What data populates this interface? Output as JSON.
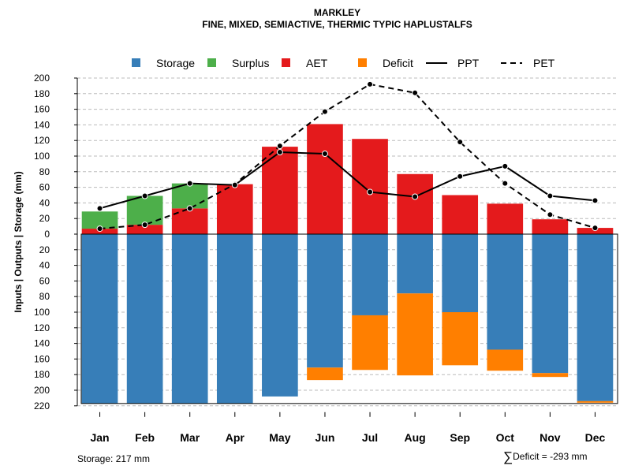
{
  "chart_data": {
    "type": "bar",
    "title": "MARKLEY",
    "subtitle": "FINE, MIXED, SEMIACTIVE, THERMIC TYPIC HAPLUSTALFS",
    "ylabel": "Inputs | Outputs | Storage    (mm)",
    "xlabel": "",
    "ylim": [
      -220,
      200
    ],
    "grid": true,
    "y_ticks": [
      200,
      180,
      160,
      140,
      120,
      100,
      80,
      60,
      40,
      20,
      0,
      -20,
      -40,
      -60,
      -80,
      -100,
      -120,
      -140,
      -160,
      -180,
      -200,
      -220
    ],
    "y_tick_labels": [
      "200",
      "180",
      "160",
      "140",
      "120",
      "100",
      "80",
      "60",
      "40",
      "20",
      "0",
      "20",
      "40",
      "60",
      "80",
      "100",
      "120",
      "140",
      "160",
      "180",
      "200",
      "220"
    ],
    "categories": [
      "Jan",
      "Feb",
      "Mar",
      "Apr",
      "May",
      "Jun",
      "Jul",
      "Aug",
      "Sep",
      "Oct",
      "Nov",
      "Dec"
    ],
    "legend": [
      "Storage",
      "Surplus",
      "AET",
      "Deficit",
      "PPT",
      "PET"
    ],
    "legend_position": "top",
    "colors": {
      "storage": "#377EB8",
      "surplus": "#4DAF4A",
      "aet": "#E41A1C",
      "deficit": "#FF7F00",
      "line": "#000000",
      "grid": "#bbbbbb"
    },
    "series": [
      {
        "name": "AET",
        "values": [
          7,
          12,
          33,
          64,
          112,
          141,
          122,
          77,
          50,
          39,
          19,
          8
        ]
      },
      {
        "name": "Surplus",
        "values": [
          22,
          37,
          32,
          0,
          0,
          0,
          0,
          0,
          0,
          0,
          0,
          0
        ]
      },
      {
        "name": "Storage",
        "values": [
          217,
          217,
          217,
          217,
          208,
          171,
          104,
          76,
          100,
          148,
          178,
          214
        ]
      },
      {
        "name": "Deficit",
        "values": [
          0,
          0,
          0,
          0,
          0,
          16,
          70,
          105,
          68,
          27,
          5,
          2
        ]
      },
      {
        "name": "PPT",
        "values": [
          33,
          49,
          65,
          63,
          105,
          103,
          54,
          48,
          74,
          87,
          49,
          43
        ]
      },
      {
        "name": "PET",
        "values": [
          7,
          12,
          33,
          64,
          113,
          157,
          192,
          181,
          118,
          65,
          25,
          8
        ]
      }
    ]
  },
  "footer": {
    "storage": "Storage: 217 mm",
    "deficit_symbol": "∑",
    "deficit": "Deficit = -293 mm"
  }
}
